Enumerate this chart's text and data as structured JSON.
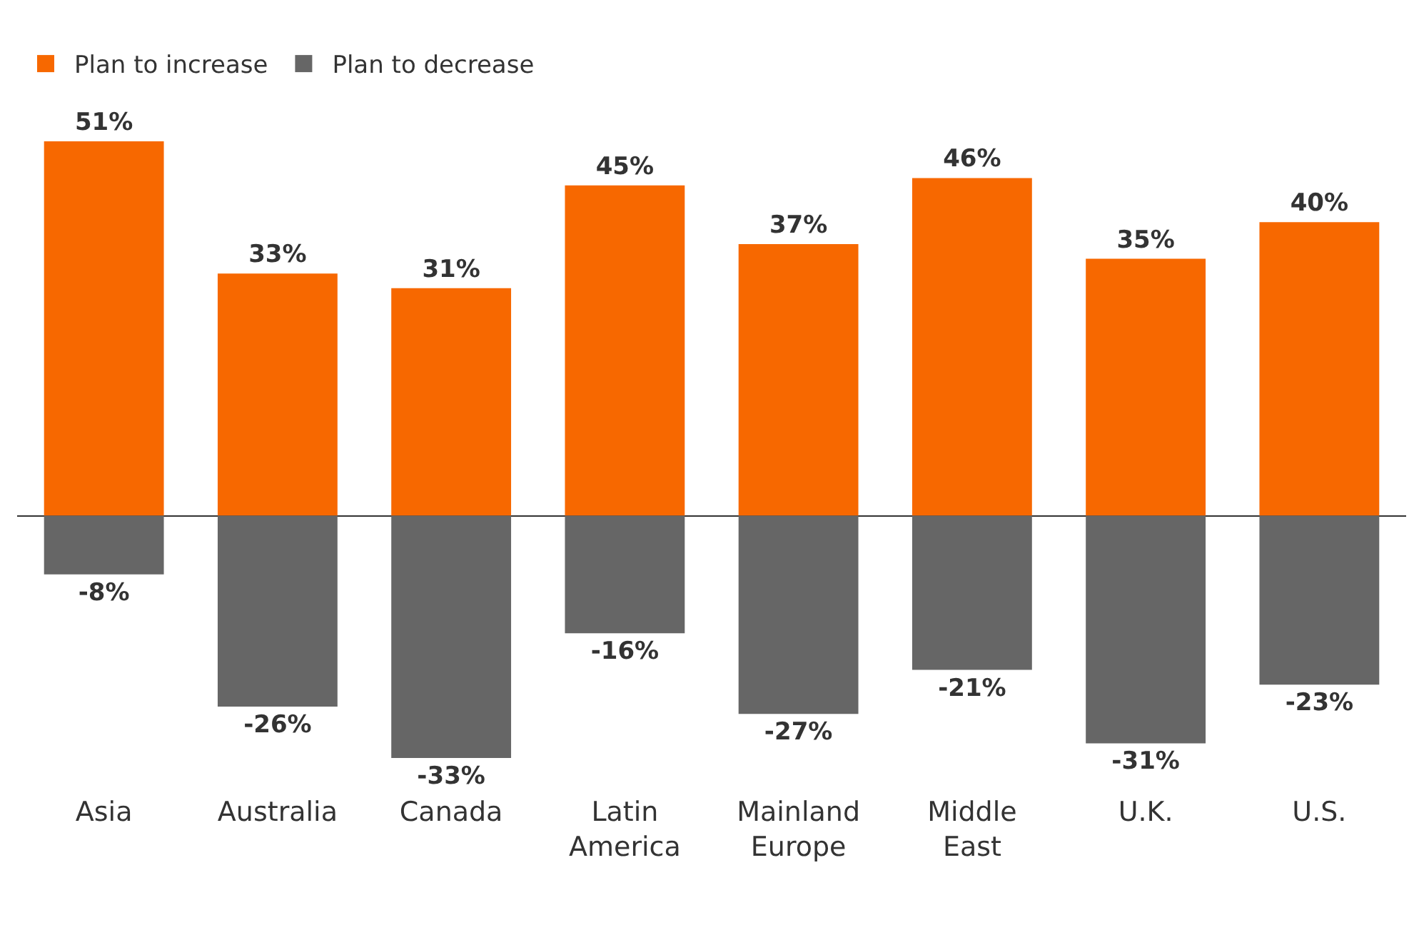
{
  "chart_data": {
    "type": "bar",
    "categories": [
      "Asia",
      "Australia",
      "Canada",
      "Latin America",
      "Mainland Europe",
      "Middle East",
      "U.K.",
      "U.S."
    ],
    "series": [
      {
        "name": "Plan to increase",
        "color": "#f76800",
        "values": [
          51,
          33,
          31,
          45,
          37,
          46,
          35,
          40
        ],
        "value_labels": [
          "51%",
          "33%",
          "31%",
          "45%",
          "37%",
          "46%",
          "35%",
          "40%"
        ]
      },
      {
        "name": "Plan to decrease",
        "color": "#666666",
        "values": [
          -8,
          -26,
          -33,
          -16,
          -27,
          -21,
          -31,
          -23
        ],
        "value_labels": [
          "-8%",
          "-26%",
          "-33%",
          "-16%",
          "-27%",
          "-21%",
          "-31%",
          "-23%"
        ]
      }
    ],
    "stacked": true,
    "tick_labels": "x",
    "grid": false,
    "legend": "top left"
  }
}
